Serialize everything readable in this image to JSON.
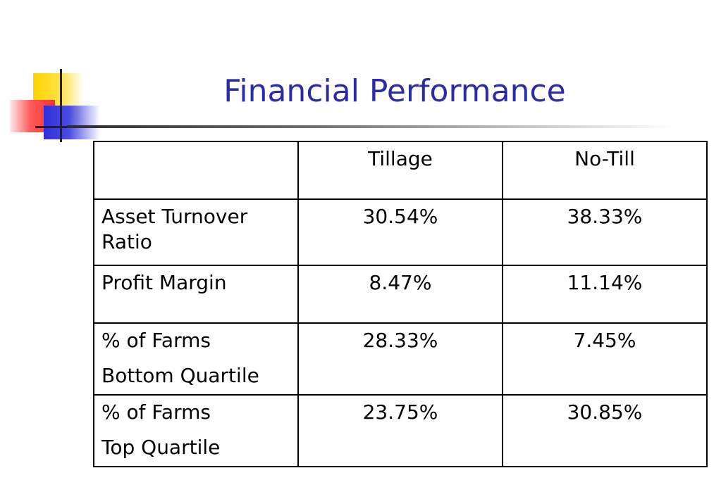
{
  "slide": {
    "title": "Financial Performance",
    "table": {
      "columns": [
        "",
        "Tillage",
        "No-Till"
      ],
      "rows": [
        {
          "label_lines": [
            "Asset Turnover",
            "Ratio"
          ],
          "tillage": "30.54%",
          "no_till": "38.33%"
        },
        {
          "label_lines": [
            "Profit Margin"
          ],
          "tillage": "8.47%",
          "no_till": "11.14%"
        },
        {
          "label_lines": [
            "% of Farms",
            "Bottom Quartile"
          ],
          "tillage": "28.33%",
          "no_till": "7.45%"
        },
        {
          "label_lines": [
            "% of Farms",
            "Top Quartile"
          ],
          "tillage": "23.75%",
          "no_till": "30.85%"
        }
      ]
    }
  },
  "colors": {
    "title": "#2b2ba6",
    "logo_yellow": "#ffd400",
    "logo_red": "#ff3030",
    "logo_blue": "#2f2fd8"
  }
}
